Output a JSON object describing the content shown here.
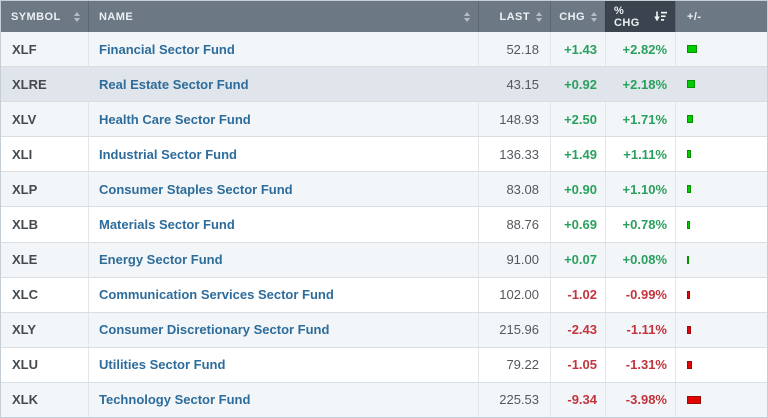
{
  "colors": {
    "header_bg": "#6c7884",
    "header_active_bg": "#3a434e",
    "header_text": "#edf0f3",
    "row_stripe_bg": "#f3f6f8",
    "row_highlight_bg": "#dfe5ea",
    "name_link": "#2d6c9b",
    "positive": "#2aa05f",
    "negative": "#c3343f",
    "bar_positive": "#00cc00",
    "bar_positive_border": "#089000",
    "bar_negative": "#e30505",
    "bar_negative_border": "#9c0a0a"
  },
  "table": {
    "columns": {
      "symbol": {
        "label": "SYMBOL",
        "sortable": true,
        "sorted": null
      },
      "name": {
        "label": "NAME",
        "sortable": true,
        "sorted": null
      },
      "last": {
        "label": "LAST",
        "sortable": true,
        "sorted": null
      },
      "chg": {
        "label": "CHG",
        "sortable": true,
        "sorted": null
      },
      "pct_chg": {
        "label": "% CHG",
        "sortable": true,
        "sorted": "desc"
      },
      "bar": {
        "label": "+/-",
        "sortable": false,
        "sorted": null
      }
    },
    "highlighted_symbol": "XLRE",
    "rows": [
      {
        "symbol": "XLF",
        "name": "Financial Sector Fund",
        "last": "52.18",
        "chg": "+1.43",
        "pct_chg": "+2.82%"
      },
      {
        "symbol": "XLRE",
        "name": "Real Estate Sector Fund",
        "last": "43.15",
        "chg": "+0.92",
        "pct_chg": "+2.18%"
      },
      {
        "symbol": "XLV",
        "name": "Health Care Sector Fund",
        "last": "148.93",
        "chg": "+2.50",
        "pct_chg": "+1.71%"
      },
      {
        "symbol": "XLI",
        "name": "Industrial Sector Fund",
        "last": "136.33",
        "chg": "+1.49",
        "pct_chg": "+1.11%"
      },
      {
        "symbol": "XLP",
        "name": "Consumer Staples Sector Fund",
        "last": "83.08",
        "chg": "+0.90",
        "pct_chg": "+1.10%"
      },
      {
        "symbol": "XLB",
        "name": "Materials Sector Fund",
        "last": "88.76",
        "chg": "+0.69",
        "pct_chg": "+0.78%"
      },
      {
        "symbol": "XLE",
        "name": "Energy Sector Fund",
        "last": "91.00",
        "chg": "+0.07",
        "pct_chg": "+0.08%"
      },
      {
        "symbol": "XLC",
        "name": "Communication Services Sector Fund",
        "last": "102.00",
        "chg": "-1.02",
        "pct_chg": "-0.99%"
      },
      {
        "symbol": "XLY",
        "name": "Consumer Discretionary Sector Fund",
        "last": "215.96",
        "chg": "-2.43",
        "pct_chg": "-1.11%"
      },
      {
        "symbol": "XLU",
        "name": "Utilities Sector Fund",
        "last": "79.22",
        "chg": "-1.05",
        "pct_chg": "-1.31%"
      },
      {
        "symbol": "XLK",
        "name": "Technology Sector Fund",
        "last": "225.53",
        "chg": "-9.34",
        "pct_chg": "-3.98%"
      }
    ]
  }
}
